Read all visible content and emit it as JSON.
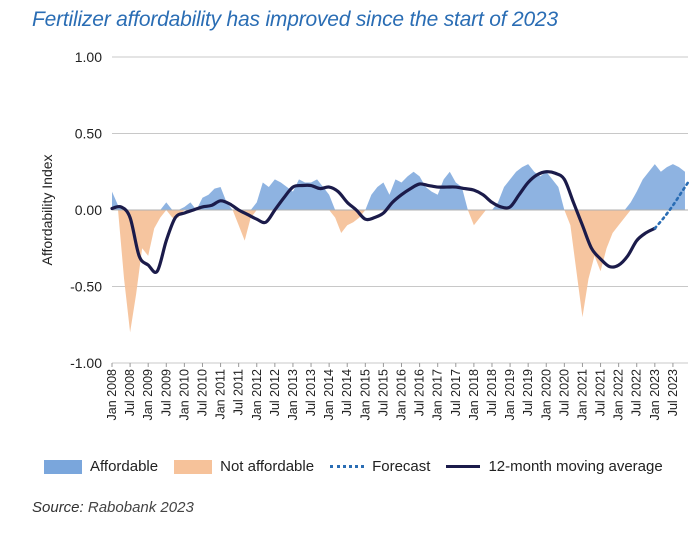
{
  "title": "Fertilizer affordability has improved since the start of 2023",
  "source": {
    "label": "Source:",
    "text": "Rabobank 2023"
  },
  "legend": {
    "affordable": "Affordable",
    "not_affordable": "Not affordable",
    "forecast": "Forecast",
    "moving_average": "12-month moving average"
  },
  "colors": {
    "affordable": "#7aa6dc",
    "not_affordable": "#f6c29a",
    "forecast": "#2a6db4",
    "moving_average": "#1b1b4a",
    "title": "#2a6db4",
    "grid": "#c8c8c8"
  },
  "chart_data": {
    "type": "area",
    "title": "Fertilizer affordability has improved since the start of 2023",
    "xlabel": "",
    "ylabel": "Affordability Index",
    "ylim": [
      -1.0,
      1.0
    ],
    "yticks": [
      -1.0,
      -0.5,
      0.0,
      0.5,
      1.0
    ],
    "ytick_labels": [
      "-1.00",
      "-0.50",
      "0.00",
      "0.50",
      "1.00"
    ],
    "xlim": [
      "2008-01",
      "2023-12"
    ],
    "xticks": [
      "2008-01",
      "2008-07",
      "2009-01",
      "2009-07",
      "2010-01",
      "2010-07",
      "2011-01",
      "2011-07",
      "2012-01",
      "2012-07",
      "2013-01",
      "2013-07",
      "2014-01",
      "2014-07",
      "2015-01",
      "2015-07",
      "2016-01",
      "2016-07",
      "2017-01",
      "2017-07",
      "2018-01",
      "2018-07",
      "2019-01",
      "2019-07",
      "2020-01",
      "2020-07",
      "2021-01",
      "2021-07",
      "2022-01",
      "2022-07",
      "2023-01",
      "2023-07"
    ],
    "xtick_labels": [
      "Jan 2008",
      "Jul 2008",
      "Jan 2009",
      "Jul 2009",
      "Jan 2010",
      "Jul 2010",
      "Jan 2011",
      "Jul 2011",
      "Jan 2012",
      "Jul 2012",
      "Jan 2013",
      "Jul 2013",
      "Jan 2014",
      "Jul 2014",
      "Jan 2015",
      "Jul 2015",
      "Jan 2016",
      "Jul 2016",
      "Jan 2017",
      "Jul 2017",
      "Jan 2018",
      "Jul 2018",
      "Jan 2019",
      "Jul 2019",
      "Jan 2020",
      "Jul 2020",
      "Jan 2021",
      "Jul 2021",
      "Jan 2022",
      "Jul 2022",
      "Jan 2023",
      "Jul 2023"
    ],
    "grid": true,
    "legend_position": "bottom",
    "series": [
      {
        "name": "Affordable / Not affordable",
        "kind": "area",
        "x": [
          "2008-01",
          "2008-03",
          "2008-05",
          "2008-07",
          "2008-09",
          "2008-11",
          "2009-01",
          "2009-03",
          "2009-05",
          "2009-07",
          "2009-09",
          "2009-11",
          "2010-01",
          "2010-03",
          "2010-05",
          "2010-07",
          "2010-09",
          "2010-11",
          "2011-01",
          "2011-03",
          "2011-05",
          "2011-07",
          "2011-09",
          "2011-11",
          "2012-01",
          "2012-03",
          "2012-05",
          "2012-07",
          "2012-09",
          "2012-11",
          "2013-01",
          "2013-03",
          "2013-05",
          "2013-07",
          "2013-09",
          "2013-11",
          "2014-01",
          "2014-03",
          "2014-05",
          "2014-07",
          "2014-09",
          "2014-11",
          "2015-01",
          "2015-03",
          "2015-05",
          "2015-07",
          "2015-09",
          "2015-11",
          "2016-01",
          "2016-03",
          "2016-05",
          "2016-07",
          "2016-09",
          "2016-11",
          "2017-01",
          "2017-03",
          "2017-05",
          "2017-07",
          "2017-09",
          "2017-11",
          "2018-01",
          "2018-03",
          "2018-05",
          "2018-07",
          "2018-09",
          "2018-11",
          "2019-01",
          "2019-03",
          "2019-05",
          "2019-07",
          "2019-09",
          "2019-11",
          "2020-01",
          "2020-03",
          "2020-05",
          "2020-07",
          "2020-09",
          "2020-11",
          "2021-01",
          "2021-03",
          "2021-05",
          "2021-07",
          "2021-09",
          "2021-11",
          "2022-01",
          "2022-03",
          "2022-05",
          "2022-07",
          "2022-09",
          "2022-11",
          "2023-01",
          "2023-03",
          "2023-05",
          "2023-07",
          "2023-09",
          "2023-11"
        ],
        "values": [
          0.12,
          0.03,
          -0.45,
          -0.8,
          -0.55,
          -0.25,
          -0.3,
          -0.12,
          -0.05,
          0.05,
          -0.05,
          -0.05,
          0.02,
          0.05,
          0.0,
          0.08,
          0.1,
          0.14,
          0.15,
          0.05,
          0.0,
          -0.1,
          -0.2,
          -0.05,
          0.05,
          0.18,
          0.15,
          0.2,
          0.18,
          0.15,
          0.12,
          0.2,
          0.18,
          0.18,
          0.2,
          0.15,
          0.1,
          -0.05,
          -0.15,
          -0.1,
          -0.08,
          -0.05,
          0.0,
          0.1,
          0.15,
          0.18,
          0.1,
          0.2,
          0.18,
          0.22,
          0.25,
          0.22,
          0.15,
          0.12,
          0.1,
          0.2,
          0.25,
          0.18,
          0.15,
          0.0,
          -0.1,
          -0.05,
          0.0,
          0.0,
          0.05,
          0.15,
          0.2,
          0.25,
          0.28,
          0.3,
          0.25,
          0.22,
          0.25,
          0.2,
          0.15,
          0.0,
          -0.1,
          -0.4,
          -0.7,
          -0.45,
          -0.3,
          -0.4,
          -0.25,
          -0.15,
          -0.1,
          -0.05,
          0.05,
          0.12,
          0.2,
          0.25,
          0.3,
          0.25,
          0.28,
          0.3,
          0.28,
          0.25
        ]
      },
      {
        "name": "12-month moving average",
        "kind": "line",
        "x": [
          "2008-01",
          "2008-04",
          "2008-07",
          "2008-10",
          "2009-01",
          "2009-04",
          "2009-07",
          "2009-10",
          "2010-01",
          "2010-04",
          "2010-07",
          "2010-10",
          "2011-01",
          "2011-04",
          "2011-07",
          "2011-10",
          "2012-01",
          "2012-04",
          "2012-07",
          "2012-10",
          "2013-01",
          "2013-04",
          "2013-07",
          "2013-10",
          "2014-01",
          "2014-04",
          "2014-07",
          "2014-10",
          "2015-01",
          "2015-04",
          "2015-07",
          "2015-10",
          "2016-01",
          "2016-04",
          "2016-07",
          "2016-10",
          "2017-01",
          "2017-04",
          "2017-07",
          "2017-10",
          "2018-01",
          "2018-04",
          "2018-07",
          "2018-10",
          "2019-01",
          "2019-04",
          "2019-07",
          "2019-10",
          "2020-01",
          "2020-04",
          "2020-07",
          "2020-10",
          "2021-01",
          "2021-04",
          "2021-07",
          "2021-10",
          "2022-01",
          "2022-04",
          "2022-07",
          "2022-10",
          "2023-01"
        ],
        "values": [
          0.01,
          0.02,
          -0.05,
          -0.3,
          -0.36,
          -0.4,
          -0.2,
          -0.05,
          -0.02,
          0.0,
          0.02,
          0.03,
          0.06,
          0.04,
          0.0,
          -0.03,
          -0.06,
          -0.08,
          0.0,
          0.08,
          0.15,
          0.16,
          0.16,
          0.14,
          0.15,
          0.12,
          0.05,
          0.0,
          -0.06,
          -0.05,
          -0.02,
          0.05,
          0.1,
          0.14,
          0.17,
          0.16,
          0.15,
          0.15,
          0.15,
          0.14,
          0.13,
          0.1,
          0.05,
          0.02,
          0.02,
          0.1,
          0.18,
          0.23,
          0.25,
          0.24,
          0.2,
          0.05,
          -0.1,
          -0.25,
          -0.32,
          -0.37,
          -0.36,
          -0.3,
          -0.2,
          -0.15,
          -0.12
        ]
      },
      {
        "name": "Forecast",
        "kind": "dotted",
        "x": [
          "2023-01",
          "2023-04",
          "2023-07",
          "2023-10",
          "2023-12"
        ],
        "values": [
          -0.12,
          -0.05,
          0.03,
          0.12,
          0.18
        ]
      }
    ]
  }
}
